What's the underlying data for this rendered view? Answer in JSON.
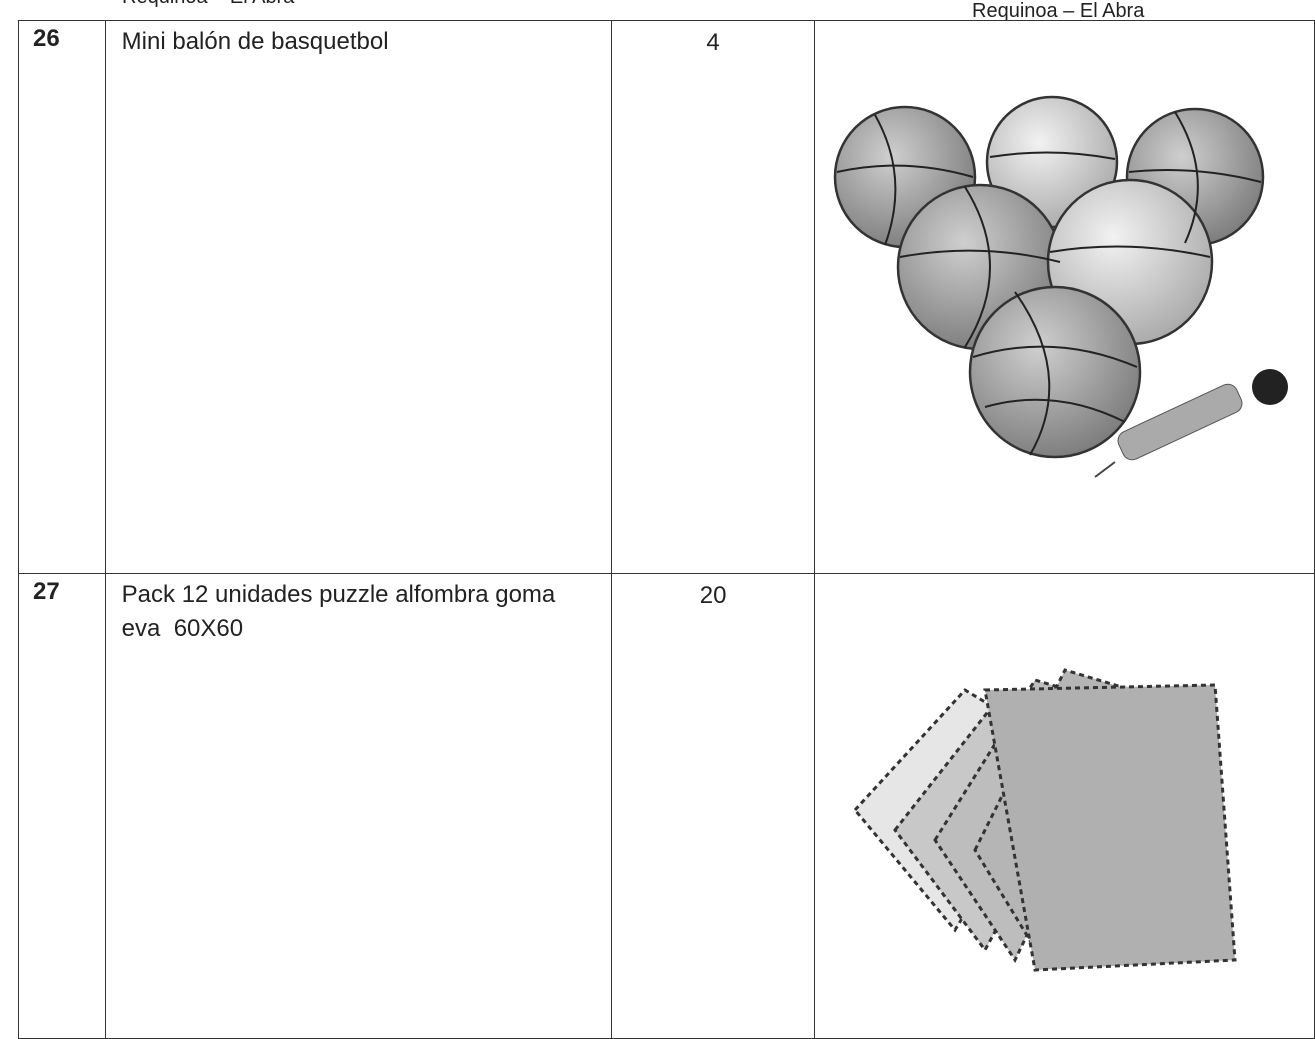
{
  "header": {
    "left": "Requinoa – El Abra",
    "right": "Requinoa – El Abra"
  },
  "table": {
    "rows": [
      [
        "26",
        "Mini balón de basquetbol",
        "4"
      ],
      [
        "27",
        "Pack 12 unidades puzzle alfombra goma eva  60X60",
        "20"
      ]
    ]
  }
}
